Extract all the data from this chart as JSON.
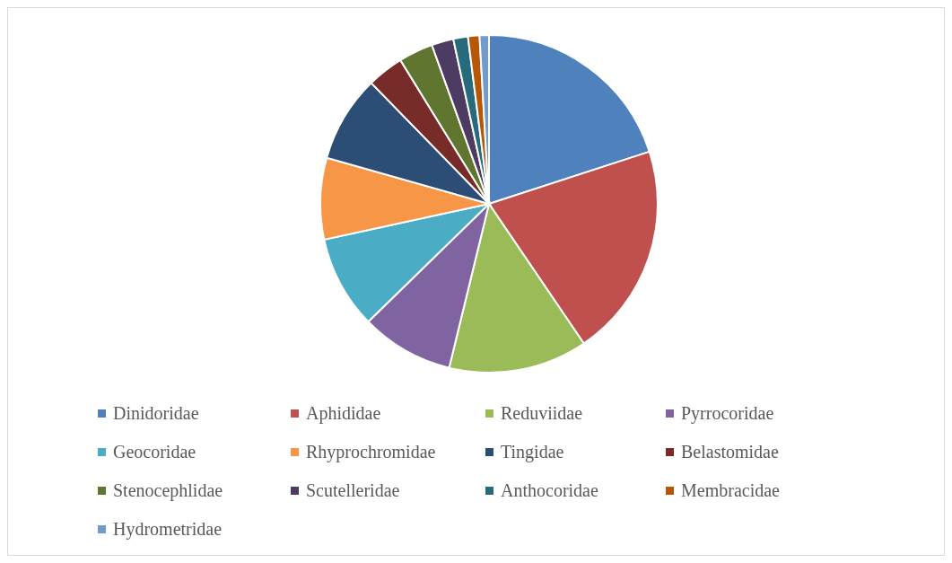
{
  "chart_data": {
    "type": "pie",
    "categories": [
      "Dinidoridae",
      "Aphididae",
      "Reduviidae",
      "Pyrrocoridae",
      "Geocoridae",
      "Rhyprochromidae",
      "Tingidae",
      "Belastomidae",
      "Stenocephlidae",
      "Scutelleridae",
      "Anthocoridae",
      "Membracidae",
      "Hydrometridae"
    ],
    "values": [
      20.0,
      20.5,
      13.3,
      8.9,
      8.9,
      7.8,
      8.3,
      3.5,
      3.3,
      2.1,
      1.4,
      1.1,
      0.9
    ],
    "colors": [
      "#4f81bd",
      "#c0504d",
      "#9bbb59",
      "#8064a2",
      "#4bacc6",
      "#f79646",
      "#2c4d75",
      "#772c2a",
      "#5f7530",
      "#4d3b62",
      "#276a7c",
      "#b65708",
      "#729aca"
    ],
    "legend": "bottom"
  }
}
